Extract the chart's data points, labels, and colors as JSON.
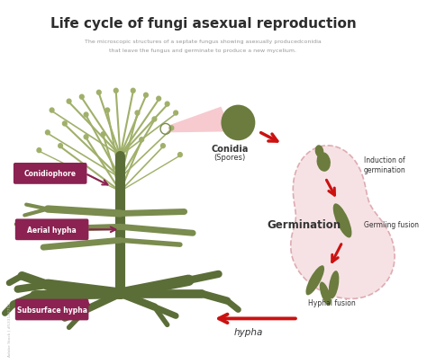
{
  "title": "Life cycle of fungi asexual reproduction",
  "subtitle_line1": "The microscopic structures of a septate fungus showing asexually producedconidia",
  "subtitle_line2": "that leave the fungus and germinate to produce a new mycelium.",
  "bg_color": "#ffffff",
  "title_color": "#2d2d2d",
  "subtitle_color": "#999999",
  "fungi_color": "#7a8c4e",
  "fungi_light": "#a0b06a",
  "fungi_dark": "#5c6e38",
  "label_bg": "#8b2252",
  "label_text": "#ffffff",
  "arrow_color": "#cc1111",
  "blob_bg": "#f5dde0",
  "blob_border": "#d9a0a8",
  "cycle_shape_color": "#6b7c3e",
  "text_dark": "#333333",
  "hypha_label": "hypha",
  "conidia_label1": "Conidia",
  "conidia_label2": "(Spores)",
  "germination_label": "Germination",
  "labels": [
    "Conidiophore",
    "Aerial hypha",
    "Subsurface hypha"
  ],
  "cycle_labels": [
    "Induction of\ngermination",
    "Germling fusion",
    "Hyphal fusion"
  ],
  "watermark": "Adobe Stock | #533143752"
}
